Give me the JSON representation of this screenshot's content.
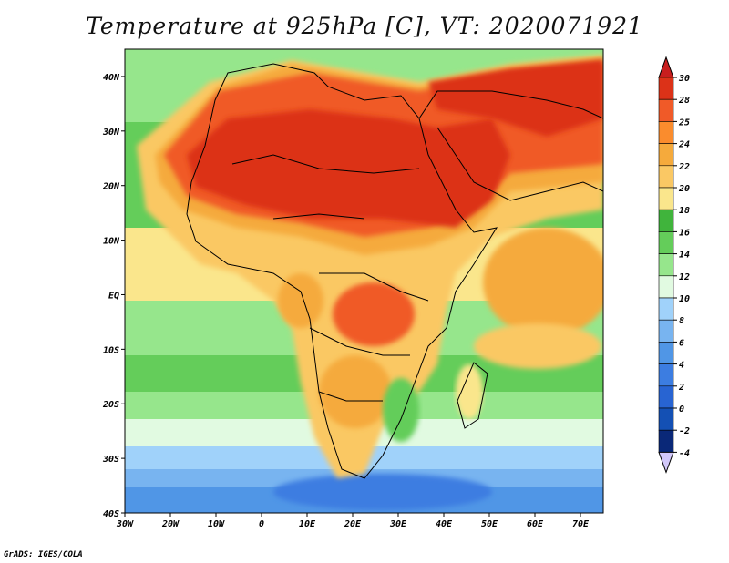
{
  "title": "Temperature at 925hPa [C], VT: 2020071921",
  "credit": "GrADS: IGES/COLA",
  "map": {
    "variable": "Temperature",
    "level": "925hPa",
    "units": "C",
    "valid_time": "2020071921",
    "lon_range": [
      -30,
      75
    ],
    "lat_range": [
      -40,
      45
    ],
    "lon_ticks": [
      "30W",
      "20W",
      "10W",
      "0",
      "10E",
      "20E",
      "30E",
      "40E",
      "50E",
      "60E",
      "70E"
    ],
    "lat_ticks": [
      "40N",
      "30N",
      "20N",
      "10N",
      "EQ",
      "10S",
      "20S",
      "30S",
      "40S"
    ]
  },
  "colorbar": {
    "labels": [
      "30",
      "28",
      "25",
      "24",
      "22",
      "20",
      "18",
      "16",
      "14",
      "12",
      "10",
      "8",
      "6",
      "4",
      "2",
      "0",
      "-2",
      "-4"
    ],
    "colors": [
      "#dc3218",
      "#f05a28",
      "#fa8c2d",
      "#f5aa3c",
      "#fac864",
      "#fae68c",
      "#40b43c",
      "#64cd5a",
      "#96e68c",
      "#e1fae1",
      "#a0d2fa",
      "#78b4f0",
      "#5096e6",
      "#3c7de1",
      "#2864d2",
      "#1450b4",
      "#0a2878"
    ],
    "top_arrow_color": "#c81e1e",
    "bottom_arrow_color": "#d2c8fa"
  }
}
